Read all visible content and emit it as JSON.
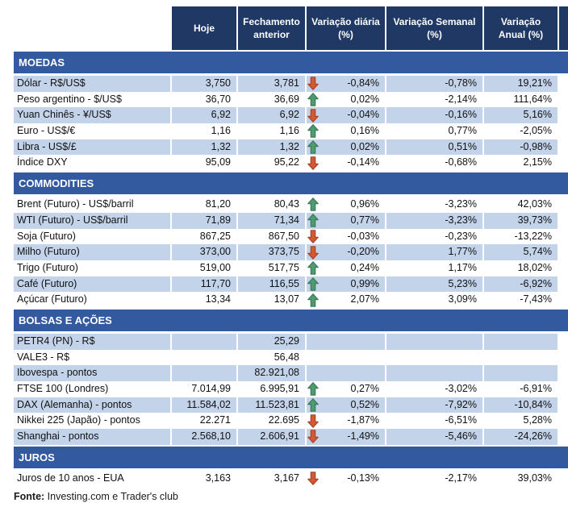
{
  "header": {
    "columns": [
      "Hoje",
      "Fechamento anterior",
      "Variação diária (%)",
      "Variação Semanal (%)",
      "Variação Anual (%)"
    ]
  },
  "sections": [
    {
      "title": "MOEDAS",
      "rows": [
        {
          "label": "Dólar - R$/US$",
          "hoje": "3,750",
          "fechamento": "3,781",
          "arrow": "down",
          "diaria": "-0,84%",
          "semanal": "-0,78%",
          "anual": "19,21%"
        },
        {
          "label": "Peso argentino - $/US$",
          "hoje": "36,70",
          "fechamento": "36,69",
          "arrow": "up",
          "diaria": "0,02%",
          "semanal": "-2,14%",
          "anual": "111,64%"
        },
        {
          "label": "Yuan Chinês - ¥/US$",
          "hoje": "6,92",
          "fechamento": "6,92",
          "arrow": "down",
          "diaria": "-0,04%",
          "semanal": "-0,16%",
          "anual": "5,16%"
        },
        {
          "label": "Euro - US$/€",
          "hoje": "1,16",
          "fechamento": "1,16",
          "arrow": "up",
          "diaria": "0,16%",
          "semanal": "0,77%",
          "anual": "-2,05%"
        },
        {
          "label": "Libra - US$/£",
          "hoje": "1,32",
          "fechamento": "1,32",
          "arrow": "up",
          "diaria": "0,02%",
          "semanal": "0,51%",
          "anual": "-0,98%"
        },
        {
          "label": "Índice DXY",
          "hoje": "95,09",
          "fechamento": "95,22",
          "arrow": "down",
          "diaria": "-0,14%",
          "semanal": "-0,68%",
          "anual": "2,15%"
        }
      ]
    },
    {
      "title": "COMMODITIES",
      "rows": [
        {
          "label": "Brent (Futuro) - US$/barril",
          "hoje": "81,20",
          "fechamento": "80,43",
          "arrow": "up",
          "diaria": "0,96%",
          "semanal": "-3,23%",
          "anual": "42,03%"
        },
        {
          "label": "WTI (Futuro) - US$/barril",
          "hoje": "71,89",
          "fechamento": "71,34",
          "arrow": "up",
          "diaria": "0,77%",
          "semanal": "-3,23%",
          "anual": "39,73%"
        },
        {
          "label": "Soja (Futuro)",
          "hoje": "867,25",
          "fechamento": "867,50",
          "arrow": "down",
          "diaria": "-0,03%",
          "semanal": "-0,23%",
          "anual": "-13,22%"
        },
        {
          "label": "Milho (Futuro)",
          "hoje": "373,00",
          "fechamento": "373,75",
          "arrow": "down",
          "diaria": "-0,20%",
          "semanal": "1,77%",
          "anual": "5,74%"
        },
        {
          "label": "Trigo (Futuro)",
          "hoje": "519,00",
          "fechamento": "517,75",
          "arrow": "up",
          "diaria": "0,24%",
          "semanal": "1,17%",
          "anual": "18,02%"
        },
        {
          "label": "Café (Futuro)",
          "hoje": "117,70",
          "fechamento": "116,55",
          "arrow": "up",
          "diaria": "0,99%",
          "semanal": "5,23%",
          "anual": "-6,92%"
        },
        {
          "label": "Açúcar (Futuro)",
          "hoje": "13,34",
          "fechamento": "13,07",
          "arrow": "up",
          "diaria": "2,07%",
          "semanal": "3,09%",
          "anual": "-7,43%"
        }
      ]
    },
    {
      "title": "BOLSAS E AÇÕES",
      "rows": [
        {
          "label": "PETR4 (PN) - R$",
          "hoje": "",
          "fechamento": "25,29",
          "arrow": "",
          "diaria": "",
          "semanal": "",
          "anual": ""
        },
        {
          "label": "VALE3 - R$",
          "hoje": "",
          "fechamento": "56,48",
          "arrow": "",
          "diaria": "",
          "semanal": "",
          "anual": ""
        },
        {
          "label": "Ibovespa - pontos",
          "hoje": "",
          "fechamento": "82.921,08",
          "arrow": "",
          "diaria": "",
          "semanal": "",
          "anual": ""
        },
        {
          "label": "FTSE 100 (Londres)",
          "hoje": "7.014,99",
          "fechamento": "6.995,91",
          "arrow": "up",
          "diaria": "0,27%",
          "semanal": "-3,02%",
          "anual": "-6,91%"
        },
        {
          "label": "DAX (Alemanha) - pontos",
          "hoje": "11.584,02",
          "fechamento": "11.523,81",
          "arrow": "up",
          "diaria": "0,52%",
          "semanal": "-7,92%",
          "anual": "-10,84%"
        },
        {
          "label": "Nikkei 225 (Japão) - pontos",
          "hoje": "22.271",
          "fechamento": "22.695",
          "arrow": "down",
          "diaria": "-1,87%",
          "semanal": "-6,51%",
          "anual": "5,28%"
        },
        {
          "label": "Shanghai - pontos",
          "hoje": "2.568,10",
          "fechamento": "2.606,91",
          "arrow": "down",
          "diaria": "-1,49%",
          "semanal": "-5,46%",
          "anual": "-24,26%"
        }
      ]
    },
    {
      "title": "JUROS",
      "rows": [
        {
          "label": "Juros de 10 anos - EUA",
          "hoje": "3,163",
          "fechamento": "3,167",
          "arrow": "down",
          "diaria": "-0,13%",
          "semanal": "-2,17%",
          "anual": "39,03%"
        }
      ]
    }
  ],
  "footer": {
    "bold": "Fonte:",
    "text": " Investing.com e Trader's club"
  },
  "icons": {
    "up": "up-arrow-icon",
    "down": "down-arrow-icon"
  },
  "colors": {
    "header_bg": "#1F3864",
    "band_bg": "#33599F",
    "row_shaded_bg": "#C3D3EA",
    "row_plain_bg": "#FFFFFF",
    "arrow_up_fill": "#4E9B72",
    "arrow_up_border": "#3B7A59",
    "arrow_down_fill": "#D15A33",
    "arrow_down_border": "#A8432A"
  }
}
